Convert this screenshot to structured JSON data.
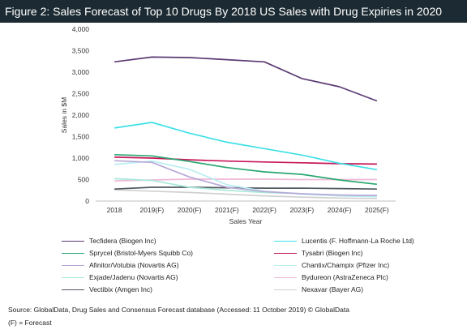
{
  "title": "Figure 2: Sales Forecast of Top 10 Drugs By 2018 US Sales with Drug Expiries in 2020",
  "source": "Source: GlobalData, Drug Sales and Consensus Forecast database (Accessed: 11 October 2019)   © GlobalData",
  "note": "(F) = Forecast",
  "chart_data": {
    "type": "line",
    "xlabel": "Sales Year",
    "ylabel": "Sales in $M",
    "ylim": [
      0,
      4000
    ],
    "yticks": [
      "0",
      "500",
      "1,000",
      "1,500",
      "2,000",
      "2,500",
      "3,000",
      "3,500",
      "4,000"
    ],
    "categories": [
      "2018",
      "2019(F)",
      "2020(F)",
      "2021(F)",
      "2022(F)",
      "2023(F)",
      "2024(F)",
      "2025(F)"
    ],
    "grid": false,
    "legend_position": "bottom",
    "series": [
      {
        "name": "Tecfidera (Biogen Inc)",
        "color": "#5b3a73",
        "values": [
          3240,
          3350,
          3340,
          3290,
          3240,
          2850,
          2660,
          2330
        ]
      },
      {
        "name": "Lucentis (F. Hoffmann-La Roche Ltd)",
        "color": "#3fe0e8",
        "values": [
          1700,
          1830,
          1580,
          1370,
          1220,
          1070,
          880,
          730
        ]
      },
      {
        "name": "Sprycel (Bristol-Myers Squibb Co)",
        "color": "#2aa872",
        "values": [
          1080,
          1050,
          920,
          780,
          680,
          620,
          490,
          390
        ]
      },
      {
        "name": "Tysabri (Biogen Inc)",
        "color": "#c8185a",
        "values": [
          1020,
          1000,
          960,
          930,
          910,
          890,
          870,
          860
        ]
      },
      {
        "name": "Afinitor/Votubia (Novartis AG)",
        "color": "#b8a8d8",
        "values": [
          940,
          900,
          560,
          320,
          220,
          170,
          140,
          130
        ]
      },
      {
        "name": "Chantix/Champix (Pfizer Inc)",
        "color": "#b8eef0",
        "values": [
          850,
          930,
          740,
          380,
          230,
          160,
          120,
          100
        ]
      },
      {
        "name": "Exjade/Jadenu (Novartis AG)",
        "color": "#a8e8d8",
        "values": [
          520,
          480,
          320,
          250,
          200,
          170,
          140,
          120
        ]
      },
      {
        "name": "Bydureon (AstraZeneca Plc)",
        "color": "#f0b8d8",
        "values": [
          470,
          490,
          510,
          510,
          510,
          500,
          500,
          500
        ]
      },
      {
        "name": "Vectibix (Amgen Inc)",
        "color": "#505860",
        "values": [
          280,
          320,
          320,
          310,
          300,
          300,
          290,
          280
        ]
      },
      {
        "name": "Nexavar (Bayer AG)",
        "color": "#d0d0d0",
        "values": [
          260,
          230,
          200,
          160,
          120,
          90,
          70,
          60
        ]
      }
    ]
  }
}
